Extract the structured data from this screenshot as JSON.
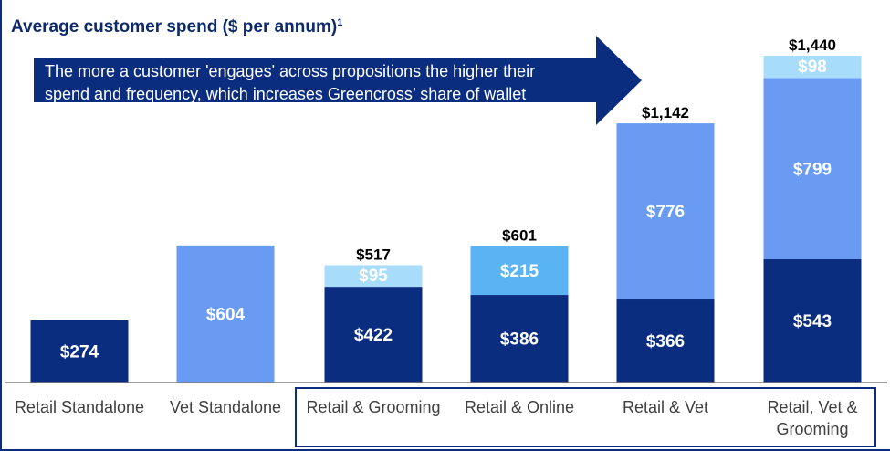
{
  "title": "Average customer spend ($ per annum)",
  "title_footnote": "1",
  "callout": {
    "line1": "The more a customer 'engages' across propositions the higher their",
    "line2": "spend and frequency, which increases Greencross’ share of wallet"
  },
  "colors": {
    "dark": "#0b2d80",
    "mid": "#6a9bf2",
    "light": "#a8dcfb",
    "online": "#5ab4f4",
    "arrow": "#0b2d80",
    "axis": "#7f7f7f"
  },
  "chart_data": {
    "type": "bar",
    "stacked": true,
    "categories": [
      "Retail Standalone",
      "Vet Standalone",
      "Retail & Grooming",
      "Retail & Online",
      "Retail & Vet",
      "Retail, Vet & Grooming"
    ],
    "category_lines": [
      [
        "Retail Standalone"
      ],
      [
        "Vet Standalone"
      ],
      [
        "Retail & Grooming"
      ],
      [
        "Retail & Online"
      ],
      [
        "Retail & Vet"
      ],
      [
        "Retail, Vet &",
        "Grooming"
      ]
    ],
    "bars": [
      {
        "segments": [
          {
            "value": 274,
            "label": "$274",
            "color": "dark"
          }
        ],
        "total_label": ""
      },
      {
        "segments": [
          {
            "value": 604,
            "label": "$604",
            "color": "mid"
          }
        ],
        "total_label": ""
      },
      {
        "segments": [
          {
            "value": 422,
            "label": "$422",
            "color": "dark"
          },
          {
            "value": 95,
            "label": "$95",
            "color": "light"
          }
        ],
        "total_label": "$517"
      },
      {
        "segments": [
          {
            "value": 386,
            "label": "$386",
            "color": "dark"
          },
          {
            "value": 215,
            "label": "$215",
            "color": "online"
          }
        ],
        "total_label": "$601"
      },
      {
        "segments": [
          {
            "value": 366,
            "label": "$366",
            "color": "dark"
          },
          {
            "value": 776,
            "label": "$776",
            "color": "mid"
          }
        ],
        "total_label": "$1,142"
      },
      {
        "segments": [
          {
            "value": 543,
            "label": "$543",
            "color": "dark"
          },
          {
            "value": 799,
            "label": "$799",
            "color": "mid"
          },
          {
            "value": 98,
            "label": "$98",
            "color": "light"
          }
        ],
        "total_label": "$1,440"
      }
    ],
    "ylim": [
      0,
      1440
    ],
    "grid": false,
    "legend": "none",
    "xlabel": "",
    "ylabel": ""
  }
}
